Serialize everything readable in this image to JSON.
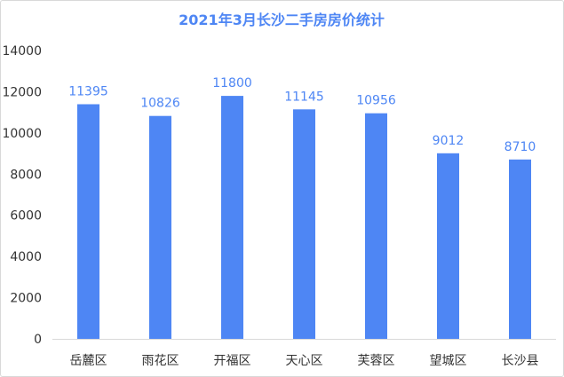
{
  "chart_data": {
    "type": "bar",
    "title": "2021年3月长沙二手房房价统计",
    "categories": [
      "岳麓区",
      "雨花区",
      "开福区",
      "天心区",
      "芙蓉区",
      "望城区",
      "长沙县"
    ],
    "values": [
      11395,
      10826,
      11800,
      11145,
      10956,
      9012,
      8710
    ],
    "ylim": [
      0,
      14000
    ],
    "yticks": [
      0,
      2000,
      4000,
      6000,
      8000,
      10000,
      12000,
      14000
    ],
    "grid": false,
    "legend": "none",
    "colors": {
      "bar": "#4e86f4",
      "title": "#4e86f4",
      "data_label": "#4e86f4",
      "tick_label": "#333333",
      "axis": "#d9d9d9"
    }
  }
}
